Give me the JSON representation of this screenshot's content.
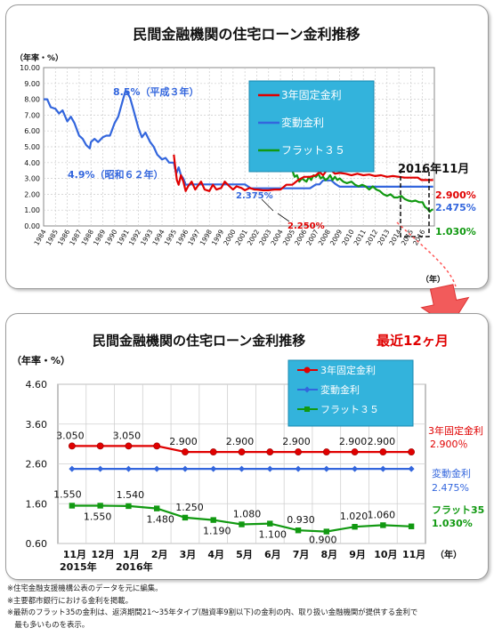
{
  "charts": {
    "top": {
      "title": "民間金融機関の住宅ローン金利推移",
      "unit_label": "（年率・%）",
      "year_unit": "（年）",
      "marker_date": "2016年11月",
      "annotations": {
        "peak": "8.5%（平成３年）",
        "low": "4.9%（昭和６２年）",
        "variable_drop": "2.375%",
        "fixed_low": "2.250%"
      },
      "end_labels": {
        "fixed": "2.900%",
        "variable": "2.475%",
        "flat": "1.030%"
      }
    },
    "bottom": {
      "title": "民間金融機関の住宅ローン金利推移",
      "subtitle": "最近12ヶ月",
      "unit_label": "（年率・%）",
      "year_unit": "（年）",
      "year_labels": [
        "2015年",
        "2016年"
      ],
      "end_labels": {
        "fixed_name": "3年固定金利",
        "fixed_value": "2.900％",
        "variable_name": "変動金利",
        "variable_value": "2.475%",
        "flat_name": "フラット35",
        "flat_value": "1.030%"
      }
    }
  },
  "notes": [
    "※住宅金融支援機構公表のデータを元に編集。",
    "※主要都市銀行における金利を掲載。",
    "※最新のフラット35の金利は、返済期間21～35年タイプ(融資率9割以下)の金利の内、取り扱い金融機関が提供する金利で",
    "　最も多いものを表示。"
  ],
  "colors": {
    "fixed": "#e00000",
    "variable": "#3366dd",
    "flat": "#119911",
    "title_accent": "#e00000",
    "legend_bg": "#33b3dc"
  },
  "chart_data": [
    {
      "type": "line",
      "ylim": [
        0,
        10
      ],
      "yticks": [
        "0.00",
        "1.00",
        "2.00",
        "3.00",
        "4.00",
        "5.00",
        "6.00",
        "7.00",
        "8.00",
        "9.00",
        "10.00"
      ],
      "categories": [
        "1984",
        "1985",
        "1986",
        "1987",
        "1988",
        "1989",
        "1990",
        "1991",
        "1992",
        "1993",
        "1994",
        "1995",
        "1996",
        "1997",
        "1998",
        "1999",
        "2000",
        "2001",
        "2002",
        "2003",
        "2004",
        "2005",
        "2006",
        "2007",
        "2008",
        "2009",
        "2010",
        "2011",
        "2012",
        "2013",
        "2014",
        "2015",
        "2016"
      ],
      "grid": true,
      "legend_position": "top-right",
      "series": [
        {
          "name": "3年固定金利",
          "color": "#e00000",
          "x": [
            1995.0,
            1995.1,
            1995.25,
            1995.4,
            1995.6,
            1995.8,
            1996.0,
            1996.2,
            1996.5,
            1996.8,
            1997.0,
            1997.3,
            1997.6,
            1998.0,
            1998.3,
            1998.6,
            1999.0,
            1999.3,
            1999.7,
            2000.0,
            2000.3,
            2000.7,
            2001.0,
            2001.4,
            2001.8,
            2002.0,
            2002.5,
            2003.0,
            2003.5,
            2004.0,
            2004.5,
            2005.0,
            2005.5,
            2006.0,
            2006.5,
            2007.0,
            2007.3,
            2007.6,
            2008.0,
            2008.3,
            2008.6,
            2009.0,
            2009.5,
            2010.0,
            2010.5,
            2011.0,
            2011.5,
            2012.0,
            2012.5,
            2013.0,
            2013.5,
            2014.0,
            2014.5,
            2015.0,
            2015.3,
            2015.6,
            2015.9,
            2016.2,
            2016.5,
            2016.75,
            2016.9
          ],
          "values": [
            4.5,
            3.8,
            2.9,
            2.6,
            3.2,
            2.8,
            2.2,
            2.5,
            2.8,
            2.3,
            2.5,
            2.8,
            2.3,
            2.2,
            2.6,
            2.3,
            2.4,
            2.8,
            2.5,
            2.3,
            2.5,
            2.4,
            2.25,
            2.4,
            2.3,
            2.3,
            2.25,
            2.25,
            2.3,
            2.3,
            2.6,
            2.6,
            2.9,
            3.1,
            3.1,
            3.2,
            3.4,
            3.2,
            3.6,
            3.5,
            3.3,
            3.35,
            3.3,
            3.2,
            3.3,
            3.2,
            3.25,
            3.15,
            3.2,
            3.1,
            3.15,
            3.1,
            3.05,
            3.05,
            3.05,
            3.05,
            2.9,
            2.9,
            2.9,
            2.9,
            2.9
          ]
        },
        {
          "name": "変動金利",
          "color": "#3366dd",
          "x": [
            1984.0,
            1984.3,
            1984.6,
            1985.0,
            1985.3,
            1985.6,
            1986.0,
            1986.3,
            1986.6,
            1987.0,
            1987.3,
            1987.6,
            1987.9,
            1988.0,
            1988.3,
            1988.6,
            1989.0,
            1989.3,
            1989.6,
            1990.0,
            1990.3,
            1990.6,
            1990.9,
            1991.0,
            1991.3,
            1991.6,
            1992.0,
            1992.3,
            1992.6,
            1993.0,
            1993.3,
            1993.6,
            1994.0,
            1994.3,
            1994.6,
            1995.0,
            1995.2,
            1995.4,
            1995.6,
            1995.8,
            1996.0,
            1996.5,
            2001.0,
            2001.5,
            2006.0,
            2006.5,
            2007.0,
            2007.3,
            2007.6,
            2008.0,
            2008.3,
            2008.6,
            2009.0,
            2009.5,
            2010.0,
            2016.9
          ],
          "values": [
            8.0,
            8.0,
            7.5,
            7.4,
            7.1,
            7.3,
            6.6,
            6.9,
            6.5,
            5.7,
            5.5,
            5.1,
            4.9,
            5.3,
            5.5,
            5.3,
            5.6,
            5.7,
            5.7,
            6.5,
            6.9,
            7.7,
            8.5,
            8.5,
            8.1,
            7.3,
            6.2,
            5.6,
            5.9,
            5.3,
            5.0,
            4.5,
            4.2,
            4.3,
            4.0,
            4.0,
            3.3,
            3.7,
            3.2,
            3.0,
            2.6,
            2.625,
            2.625,
            2.375,
            2.375,
            2.375,
            2.625,
            2.625,
            2.875,
            2.875,
            2.875,
            2.675,
            2.475,
            2.475,
            2.475,
            2.475
          ]
        },
        {
          "name": "フラット３５",
          "color": "#119911",
          "x": [
            2005.0,
            2005.2,
            2005.4,
            2005.6,
            2005.8,
            2006.0,
            2006.2,
            2006.4,
            2006.6,
            2006.8,
            2007.0,
            2007.2,
            2007.4,
            2007.6,
            2007.8,
            2008.0,
            2008.2,
            2008.4,
            2008.6,
            2008.8,
            2009.0,
            2009.3,
            2009.6,
            2010.0,
            2010.3,
            2010.6,
            2010.9,
            2011.2,
            2011.5,
            2011.8,
            2012.1,
            2012.4,
            2012.7,
            2013.0,
            2013.3,
            2013.6,
            2013.9,
            2014.2,
            2014.5,
            2014.8,
            2015.1,
            2015.4,
            2015.7,
            2016.0,
            2016.2,
            2016.4,
            2016.6,
            2016.8,
            2016.9
          ],
          "values": [
            3.5,
            3.1,
            3.2,
            2.8,
            3.0,
            2.9,
            2.8,
            3.1,
            2.9,
            3.2,
            3.1,
            3.3,
            3.0,
            3.1,
            2.9,
            3.0,
            3.2,
            2.9,
            3.1,
            2.9,
            3.0,
            2.8,
            2.7,
            2.8,
            2.6,
            2.5,
            2.6,
            2.5,
            2.3,
            2.5,
            2.3,
            2.2,
            2.0,
            1.9,
            2.0,
            1.8,
            1.8,
            1.9,
            1.7,
            1.6,
            1.55,
            1.6,
            1.5,
            1.5,
            1.2,
            1.1,
            0.9,
            1.03,
            1.03
          ]
        }
      ]
    },
    {
      "type": "line",
      "ylim": [
        0.6,
        4.6
      ],
      "yticks": [
        "0.60",
        "1.60",
        "2.60",
        "3.60",
        "4.60"
      ],
      "categories": [
        "11月",
        "12月",
        "1月",
        "2月",
        "3月",
        "4月",
        "5月",
        "6月",
        "7月",
        "8月",
        "9月",
        "10月",
        "11月"
      ],
      "grid": true,
      "legend_position": "top-right",
      "series": [
        {
          "name": "3年固定金利",
          "color": "#e00000",
          "values": [
            3.05,
            3.05,
            3.05,
            3.05,
            2.9,
            2.9,
            2.9,
            2.9,
            2.9,
            2.9,
            2.9,
            2.9,
            2.9
          ],
          "value_labels": [
            "3.050",
            "",
            "3.050",
            "",
            "2.900",
            "",
            "2.900",
            "",
            "2.900",
            "",
            "2.900",
            "2.900",
            ""
          ]
        },
        {
          "name": "変動金利",
          "color": "#3366dd",
          "values": [
            2.475,
            2.475,
            2.475,
            2.475,
            2.475,
            2.475,
            2.475,
            2.475,
            2.475,
            2.475,
            2.475,
            2.475,
            2.475
          ]
        },
        {
          "name": "フラット３５",
          "color": "#119911",
          "values": [
            1.55,
            1.55,
            1.54,
            1.48,
            1.25,
            1.19,
            1.08,
            1.1,
            0.93,
            0.9,
            1.02,
            1.06,
            1.03
          ],
          "value_labels": [
            "1.550",
            "1.550",
            "1.540",
            "1.480",
            "1.250",
            "1.190",
            "1.080",
            "1.100",
            "0.930",
            "0.900",
            "1.020",
            "1.060",
            ""
          ]
        }
      ]
    }
  ]
}
